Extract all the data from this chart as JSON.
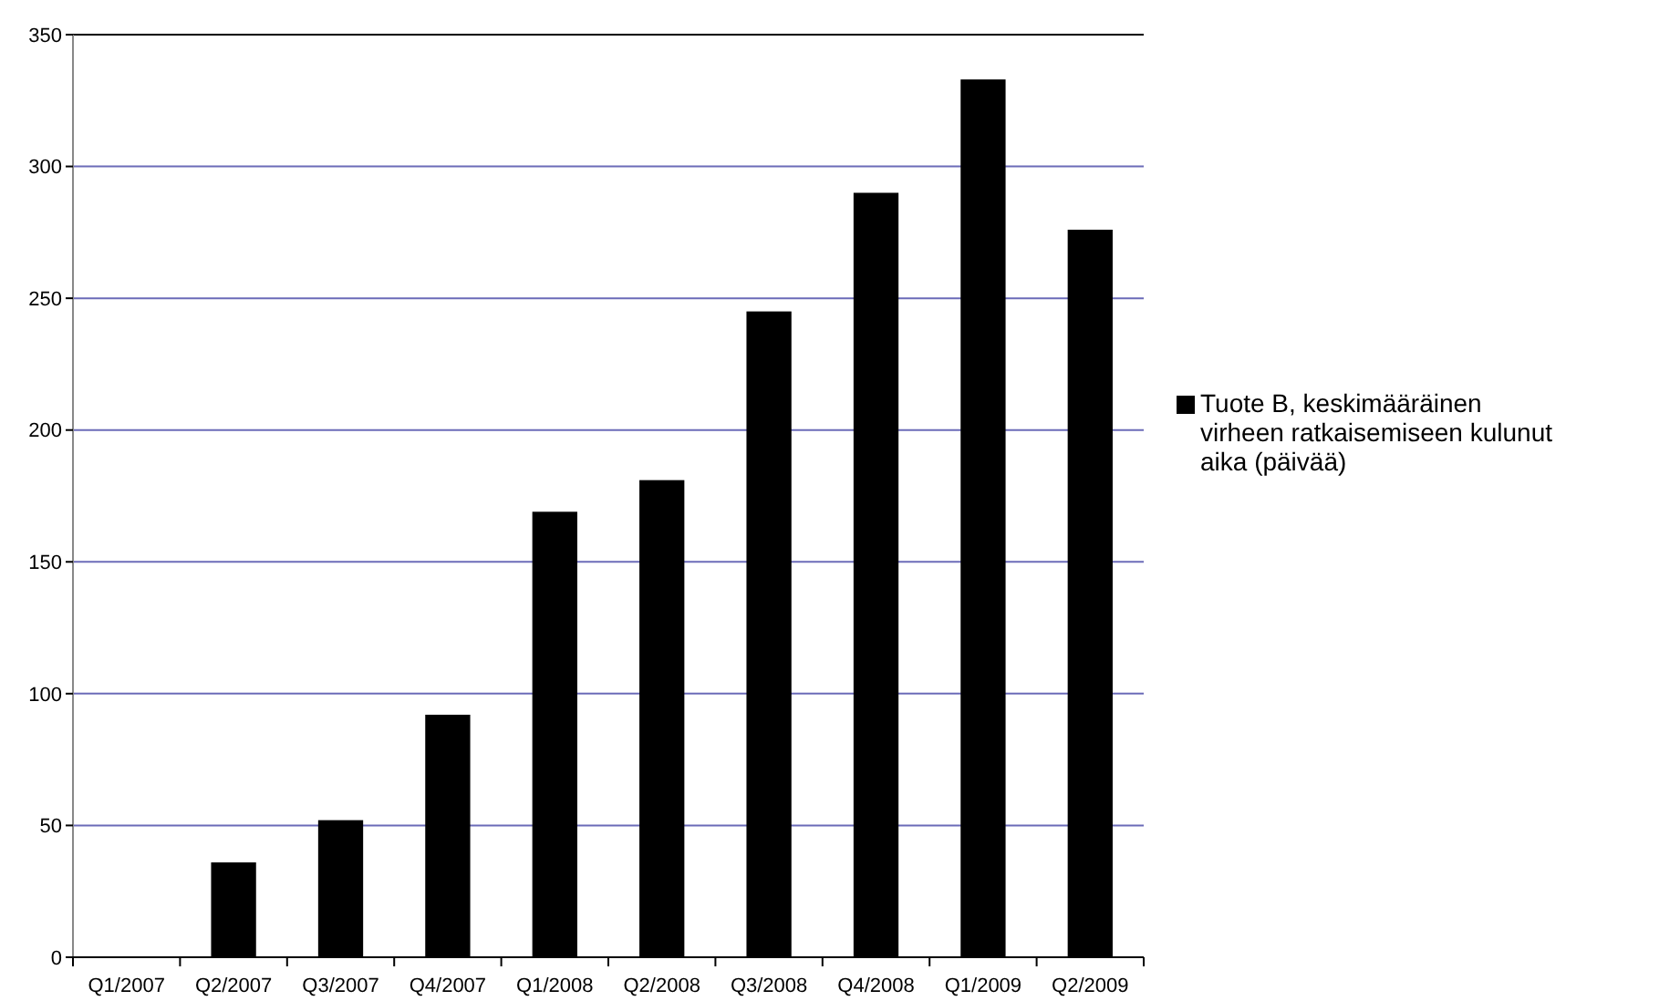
{
  "chart_data": {
    "type": "bar",
    "categories": [
      "Q1/2007",
      "Q2/2007",
      "Q3/2007",
      "Q4/2007",
      "Q1/2008",
      "Q2/2008",
      "Q3/2008",
      "Q4/2008",
      "Q1/2009",
      "Q2/2009"
    ],
    "series": [
      {
        "name": "Tuote B, keskimääräinen virheen ratkaisemiseen kulunut aika (päivää)",
        "color": "#000000",
        "values": [
          0,
          36,
          52,
          92,
          169,
          181,
          245,
          290,
          333,
          276
        ]
      }
    ],
    "ylim": [
      0,
      350
    ],
    "yticks": [
      0,
      50,
      100,
      150,
      200,
      250,
      300,
      350
    ],
    "grid": "y",
    "legend": "right"
  }
}
